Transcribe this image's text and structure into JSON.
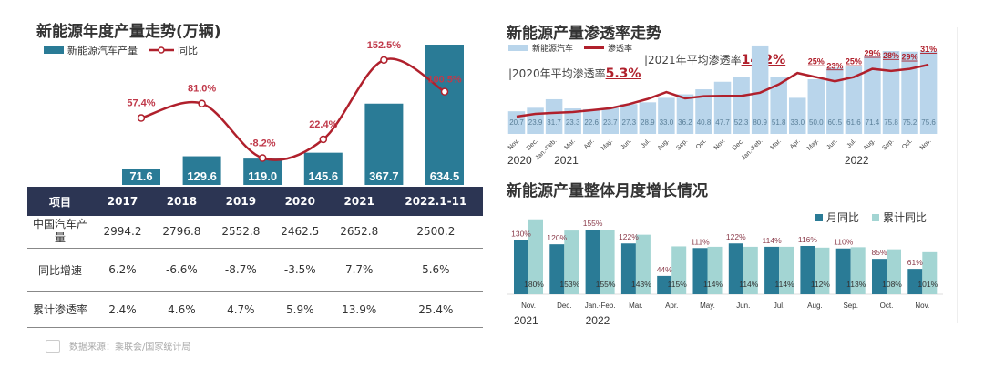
{
  "colors": {
    "bar_dark": "#2a7b96",
    "bar_blue": "#b9d5eb",
    "bar_light": "#a3d5d3",
    "line": "#b0202c",
    "table_header": "#2c3553"
  },
  "chart_data": [
    {
      "type": "bar+line",
      "title": "新能源年度产量走势(万辆)",
      "categories": [
        "2017",
        "2018",
        "2019",
        "2020",
        "2021",
        "2022.1-11"
      ],
      "series": [
        {
          "name": "新能源汽车产量",
          "type": "bar",
          "values": [
            71.6,
            129.6,
            119.0,
            145.6,
            367.7,
            634.5
          ],
          "labels": [
            "71.6",
            "129.6",
            "119.0",
            "145.6",
            "367.7",
            "634.5"
          ]
        },
        {
          "name": "同比",
          "type": "line",
          "values": [
            57.4,
            81.0,
            -8.2,
            22.4,
            152.5,
            100.5
          ],
          "labels": [
            "57.4%",
            "81.0%",
            "-8.2%",
            "22.4%",
            "152.5%",
            "100.5%"
          ]
        }
      ],
      "legend": "top-left"
    },
    {
      "type": "bar+line",
      "title": "新能源产量渗透率走势",
      "categories": [
        "Nov.",
        "Dec.",
        "Jan.-Feb.",
        "Mar.",
        "Apr.",
        "May.",
        "Jun.",
        "Jul.",
        "Aug.",
        "Sep.",
        "Oct.",
        "Nov.",
        "Dec.",
        "Jan.-Feb.",
        "Mar.",
        "Apr.",
        "May.",
        "Jun.",
        "Jul.",
        "Aug.",
        "Sep.",
        "Oct.",
        "Nov."
      ],
      "years": [
        {
          "label": "2020",
          "at": 0
        },
        {
          "label": "2021",
          "at": 2
        },
        {
          "label": "2022",
          "at": 18
        }
      ],
      "series": [
        {
          "name": "新能源汽车",
          "type": "bar",
          "values": [
            20.7,
            23.9,
            31.7,
            23.3,
            22.6,
            23.7,
            27.3,
            28.9,
            33.0,
            36.2,
            40.8,
            47.7,
            52.3,
            80.9,
            51.8,
            33.0,
            50.0,
            60.5,
            61.6,
            71.4,
            75.8,
            75.2,
            75.6
          ]
        },
        {
          "name": "渗透率",
          "type": "line",
          "values": [
            6.0,
            7.3,
            7.8,
            8.2,
            9.1,
            10.0,
            12.0,
            14.5,
            17.8,
            14.8,
            15.8,
            16.0,
            16.0,
            17.5,
            21.5,
            27.0,
            25,
            23,
            25,
            29,
            28,
            29,
            31
          ],
          "labels": [
            "",
            "",
            "",
            "",
            "",
            "",
            "",
            "",
            "",
            "",
            "",
            "",
            "",
            "",
            "",
            "",
            "25%",
            "23%",
            "25%",
            "29%",
            "28%",
            "29%",
            "31%"
          ]
        }
      ],
      "annotations": [
        {
          "text": "2020年平均渗透率",
          "value": "5.3%"
        },
        {
          "text": "2021年平均渗透率",
          "value": "14.2%"
        }
      ],
      "legend": "top-left"
    },
    {
      "type": "bar",
      "title": "新能源产量整体月度增长情况",
      "categories": [
        "Nov.",
        "Dec.",
        "Jan.-Feb.",
        "Mar.",
        "Apr.",
        "May.",
        "Jun.",
        "Jul.",
        "Aug.",
        "Sep.",
        "Oct.",
        "Nov."
      ],
      "years": [
        {
          "label": "2021",
          "at": 0
        },
        {
          "label": "2022",
          "at": 2
        }
      ],
      "series": [
        {
          "name": "月同比",
          "values": [
            130,
            120,
            155,
            122,
            44,
            111,
            122,
            114,
            116,
            110,
            85,
            61
          ]
        },
        {
          "name": "累计同比",
          "values": [
            180,
            153,
            155,
            143,
            115,
            114,
            114,
            114,
            112,
            113,
            108,
            101
          ]
        }
      ],
      "legend": "top-right"
    }
  ],
  "table": {
    "headers": [
      "项目",
      "2017",
      "2018",
      "2019",
      "2020",
      "2021",
      "2022.1-11"
    ],
    "rows": [
      [
        "中国汽车产量",
        "2994.2",
        "2796.8",
        "2552.8",
        "2462.5",
        "2652.8",
        "2500.2"
      ],
      [
        "同比增速",
        "6.2%",
        "-6.6%",
        "-8.7%",
        "-3.5%",
        "7.7%",
        "5.6%"
      ],
      [
        "累计渗透率",
        "2.4%",
        "4.6%",
        "4.7%",
        "5.9%",
        "13.9%",
        "25.4%"
      ]
    ]
  },
  "footnote": "数据来源：乘联会/国家统计局"
}
